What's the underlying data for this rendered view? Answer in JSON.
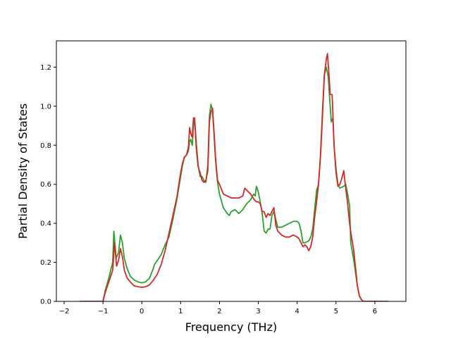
{
  "chart_data": {
    "type": "line",
    "title": "",
    "xlabel": "Frequency (THz)",
    "ylabel": "Partial Density of States",
    "xlim": [
      -2.2,
      6.8
    ],
    "ylim": [
      0,
      1.335
    ],
    "xticks": [
      -2,
      -1,
      0,
      1,
      2,
      3,
      4,
      5,
      6
    ],
    "yticks": [
      0.0,
      0.2,
      0.4,
      0.6,
      0.8,
      1.0,
      1.2
    ],
    "xtick_labels": [
      "−2",
      "−1",
      "0",
      "1",
      "2",
      "3",
      "4",
      "5",
      "6"
    ],
    "ytick_labels": [
      "0.0",
      "0.2",
      "0.4",
      "0.6",
      "0.8",
      "1.0",
      "1.2"
    ],
    "grid": false,
    "legend": "none",
    "series": [
      {
        "color": "#2ca02c",
        "points": [
          [
            -1.6,
            0.0
          ],
          [
            -1.0,
            0.0
          ],
          [
            -0.95,
            0.05
          ],
          [
            -0.85,
            0.12
          ],
          [
            -0.75,
            0.2
          ],
          [
            -0.72,
            0.36
          ],
          [
            -0.66,
            0.22
          ],
          [
            -0.6,
            0.25
          ],
          [
            -0.55,
            0.34
          ],
          [
            -0.5,
            0.3
          ],
          [
            -0.45,
            0.22
          ],
          [
            -0.38,
            0.17
          ],
          [
            -0.3,
            0.13
          ],
          [
            -0.2,
            0.11
          ],
          [
            -0.1,
            0.1
          ],
          [
            0.0,
            0.095
          ],
          [
            0.1,
            0.1
          ],
          [
            0.2,
            0.12
          ],
          [
            0.28,
            0.16
          ],
          [
            0.33,
            0.19
          ],
          [
            0.4,
            0.21
          ],
          [
            0.5,
            0.24
          ],
          [
            0.6,
            0.29
          ],
          [
            0.7,
            0.33
          ],
          [
            0.8,
            0.42
          ],
          [
            0.9,
            0.52
          ],
          [
            1.0,
            0.64
          ],
          [
            1.05,
            0.7
          ],
          [
            1.1,
            0.74
          ],
          [
            1.15,
            0.75
          ],
          [
            1.2,
            0.77
          ],
          [
            1.23,
            0.82
          ],
          [
            1.26,
            0.83
          ],
          [
            1.3,
            0.8
          ],
          [
            1.33,
            0.9
          ],
          [
            1.36,
            0.93
          ],
          [
            1.4,
            0.82
          ],
          [
            1.45,
            0.7
          ],
          [
            1.5,
            0.64
          ],
          [
            1.55,
            0.64
          ],
          [
            1.6,
            0.62
          ],
          [
            1.65,
            0.61
          ],
          [
            1.7,
            0.7
          ],
          [
            1.74,
            0.95
          ],
          [
            1.78,
            1.01
          ],
          [
            1.82,
            0.98
          ],
          [
            1.86,
            0.85
          ],
          [
            1.9,
            0.72
          ],
          [
            1.95,
            0.61
          ],
          [
            2.0,
            0.55
          ],
          [
            2.1,
            0.48
          ],
          [
            2.2,
            0.45
          ],
          [
            2.25,
            0.44
          ],
          [
            2.3,
            0.46
          ],
          [
            2.4,
            0.47
          ],
          [
            2.5,
            0.45
          ],
          [
            2.6,
            0.47
          ],
          [
            2.7,
            0.5
          ],
          [
            2.8,
            0.52
          ],
          [
            2.88,
            0.55
          ],
          [
            2.92,
            0.54
          ],
          [
            2.95,
            0.59
          ],
          [
            3.0,
            0.56
          ],
          [
            3.05,
            0.51
          ],
          [
            3.1,
            0.45
          ],
          [
            3.15,
            0.36
          ],
          [
            3.2,
            0.35
          ],
          [
            3.25,
            0.37
          ],
          [
            3.3,
            0.37
          ],
          [
            3.35,
            0.44
          ],
          [
            3.4,
            0.46
          ],
          [
            3.5,
            0.38
          ],
          [
            3.6,
            0.38
          ],
          [
            3.7,
            0.39
          ],
          [
            3.8,
            0.4
          ],
          [
            3.9,
            0.41
          ],
          [
            4.0,
            0.41
          ],
          [
            4.05,
            0.4
          ],
          [
            4.1,
            0.36
          ],
          [
            4.15,
            0.3
          ],
          [
            4.2,
            0.3
          ],
          [
            4.3,
            0.31
          ],
          [
            4.35,
            0.33
          ],
          [
            4.4,
            0.37
          ],
          [
            4.45,
            0.47
          ],
          [
            4.5,
            0.57
          ],
          [
            4.55,
            0.6
          ],
          [
            4.6,
            0.75
          ],
          [
            4.65,
            0.97
          ],
          [
            4.7,
            1.16
          ],
          [
            4.75,
            1.2
          ],
          [
            4.8,
            1.15
          ],
          [
            4.85,
            1.0
          ],
          [
            4.88,
            0.92
          ],
          [
            4.92,
            0.94
          ],
          [
            4.95,
            0.8
          ],
          [
            5.0,
            0.68
          ],
          [
            5.05,
            0.6
          ],
          [
            5.1,
            0.58
          ],
          [
            5.2,
            0.59
          ],
          [
            5.25,
            0.6
          ],
          [
            5.3,
            0.55
          ],
          [
            5.35,
            0.49
          ],
          [
            5.38,
            0.3
          ],
          [
            5.45,
            0.22
          ],
          [
            5.5,
            0.15
          ],
          [
            5.55,
            0.08
          ],
          [
            5.6,
            0.03
          ],
          [
            5.65,
            0.01
          ],
          [
            5.7,
            0.0
          ],
          [
            6.35,
            0.0
          ]
        ]
      },
      {
        "color": "#d62728",
        "points": [
          [
            -1.6,
            0.0
          ],
          [
            -1.0,
            0.0
          ],
          [
            -0.95,
            0.04
          ],
          [
            -0.85,
            0.1
          ],
          [
            -0.75,
            0.16
          ],
          [
            -0.7,
            0.3
          ],
          [
            -0.65,
            0.18
          ],
          [
            -0.6,
            0.21
          ],
          [
            -0.55,
            0.27
          ],
          [
            -0.5,
            0.23
          ],
          [
            -0.45,
            0.16
          ],
          [
            -0.38,
            0.12
          ],
          [
            -0.3,
            0.1
          ],
          [
            -0.2,
            0.08
          ],
          [
            -0.1,
            0.075
          ],
          [
            0.0,
            0.072
          ],
          [
            0.1,
            0.075
          ],
          [
            0.2,
            0.085
          ],
          [
            0.3,
            0.11
          ],
          [
            0.4,
            0.14
          ],
          [
            0.5,
            0.19
          ],
          [
            0.6,
            0.26
          ],
          [
            0.7,
            0.35
          ],
          [
            0.8,
            0.44
          ],
          [
            0.9,
            0.53
          ],
          [
            1.0,
            0.66
          ],
          [
            1.05,
            0.71
          ],
          [
            1.1,
            0.74
          ],
          [
            1.15,
            0.75
          ],
          [
            1.2,
            0.79
          ],
          [
            1.23,
            0.89
          ],
          [
            1.26,
            0.86
          ],
          [
            1.3,
            0.84
          ],
          [
            1.33,
            0.94
          ],
          [
            1.36,
            0.94
          ],
          [
            1.4,
            0.79
          ],
          [
            1.45,
            0.69
          ],
          [
            1.5,
            0.66
          ],
          [
            1.55,
            0.62
          ],
          [
            1.6,
            0.61
          ],
          [
            1.65,
            0.62
          ],
          [
            1.7,
            0.67
          ],
          [
            1.74,
            0.92
          ],
          [
            1.78,
            0.97
          ],
          [
            1.82,
            0.99
          ],
          [
            1.86,
            0.87
          ],
          [
            1.9,
            0.73
          ],
          [
            1.95,
            0.62
          ],
          [
            2.0,
            0.6
          ],
          [
            2.1,
            0.55
          ],
          [
            2.2,
            0.54
          ],
          [
            2.3,
            0.53
          ],
          [
            2.4,
            0.53
          ],
          [
            2.5,
            0.53
          ],
          [
            2.6,
            0.54
          ],
          [
            2.65,
            0.58
          ],
          [
            2.7,
            0.57
          ],
          [
            2.8,
            0.55
          ],
          [
            2.9,
            0.52
          ],
          [
            2.95,
            0.51
          ],
          [
            3.0,
            0.51
          ],
          [
            3.05,
            0.5
          ],
          [
            3.1,
            0.46
          ],
          [
            3.15,
            0.46
          ],
          [
            3.2,
            0.43
          ],
          [
            3.25,
            0.45
          ],
          [
            3.3,
            0.44
          ],
          [
            3.35,
            0.46
          ],
          [
            3.4,
            0.48
          ],
          [
            3.45,
            0.39
          ],
          [
            3.5,
            0.36
          ],
          [
            3.6,
            0.34
          ],
          [
            3.7,
            0.33
          ],
          [
            3.8,
            0.33
          ],
          [
            3.9,
            0.34
          ],
          [
            4.0,
            0.33
          ],
          [
            4.05,
            0.32
          ],
          [
            4.1,
            0.3
          ],
          [
            4.15,
            0.28
          ],
          [
            4.2,
            0.29
          ],
          [
            4.25,
            0.28
          ],
          [
            4.3,
            0.26
          ],
          [
            4.35,
            0.28
          ],
          [
            4.4,
            0.33
          ],
          [
            4.45,
            0.43
          ],
          [
            4.5,
            0.51
          ],
          [
            4.55,
            0.6
          ],
          [
            4.6,
            0.74
          ],
          [
            4.65,
            0.94
          ],
          [
            4.7,
            1.16
          ],
          [
            4.75,
            1.24
          ],
          [
            4.78,
            1.27
          ],
          [
            4.82,
            1.16
          ],
          [
            4.85,
            1.06
          ],
          [
            4.9,
            1.06
          ],
          [
            4.95,
            0.8
          ],
          [
            5.0,
            0.66
          ],
          [
            5.05,
            0.59
          ],
          [
            5.1,
            0.6
          ],
          [
            5.15,
            0.63
          ],
          [
            5.2,
            0.67
          ],
          [
            5.25,
            0.58
          ],
          [
            5.3,
            0.5
          ],
          [
            5.35,
            0.4
          ],
          [
            5.4,
            0.33
          ],
          [
            5.45,
            0.27
          ],
          [
            5.5,
            0.18
          ],
          [
            5.55,
            0.08
          ],
          [
            5.6,
            0.03
          ],
          [
            5.65,
            0.01
          ],
          [
            5.7,
            0.0
          ],
          [
            6.35,
            0.0
          ]
        ]
      }
    ]
  }
}
